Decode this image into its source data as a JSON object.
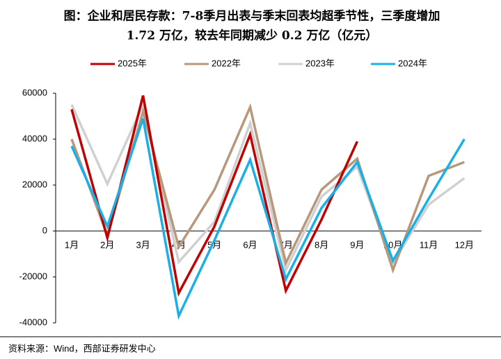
{
  "chart_data": {
    "type": "line",
    "title": "图：企业和居民存款：7-8季月出表与季末回表均超季节性，三季度增加",
    "subtitle": "1.72 万亿，较去年同期减少 0.2 万亿（亿元）",
    "source": "资料来源：Wind，西部证券研发中心",
    "categories": [
      "1月",
      "2月",
      "3月",
      "4月",
      "5月",
      "6月",
      "7月",
      "8月",
      "9月",
      "10月",
      "11月",
      "12月"
    ],
    "series": [
      {
        "name": "2025年",
        "color": "#c00000",
        "values": [
          53000,
          -3000,
          59000,
          -27000,
          2000,
          42000,
          -26000,
          5000,
          39000,
          null,
          null,
          null
        ]
      },
      {
        "name": "2022年",
        "color": "#b8977a",
        "values": [
          40000,
          -2000,
          52000,
          -7000,
          18000,
          54000,
          -14000,
          18000,
          31500,
          -17000,
          24000,
          30000
        ]
      },
      {
        "name": "2023年",
        "color": "#d0d0d0",
        "values": [
          55000,
          20500,
          55000,
          -13500,
          4000,
          47000,
          -17000,
          15000,
          28000,
          -14000,
          11500,
          23000
        ]
      },
      {
        "name": "2024年",
        "color": "#1aafe6",
        "values": [
          37000,
          2000,
          49000,
          -37000,
          -4000,
          31000,
          -21000,
          10000,
          30000,
          -13000,
          14000,
          40000
        ]
      }
    ],
    "ylim": [
      -40000,
      60000
    ],
    "yticks": [
      -40000,
      -20000,
      0,
      20000,
      40000,
      60000
    ],
    "grid": false
  }
}
